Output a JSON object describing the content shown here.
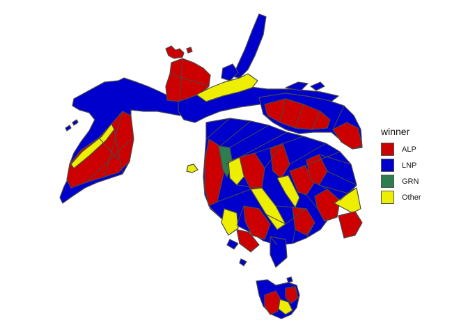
{
  "legend": {
    "title": "winner",
    "items": [
      {
        "label": "ALP",
        "color": "#CC0000"
      },
      {
        "label": "LNP",
        "color": "#0000CC"
      },
      {
        "label": "GRN",
        "color": "#2E7D4F"
      },
      {
        "label": "Other",
        "color": "#EEEE00"
      }
    ]
  }
}
